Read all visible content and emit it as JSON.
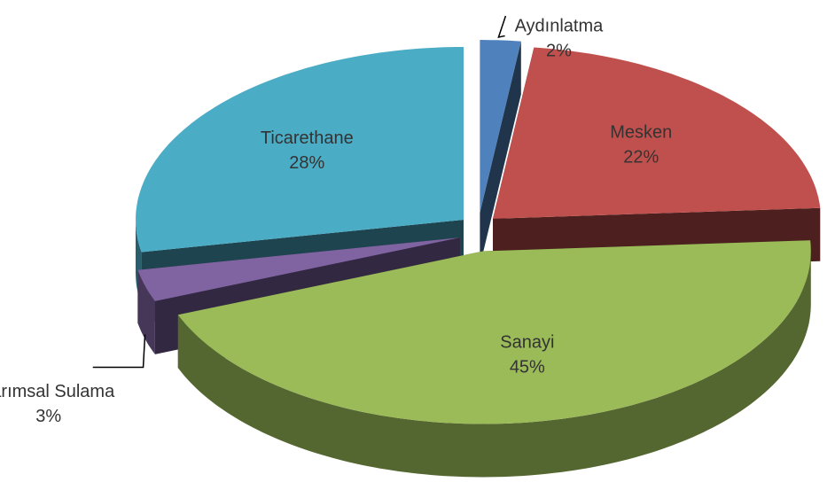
{
  "chart_data": {
    "type": "pie",
    "categories": [
      "Aydınlatma",
      "Mesken",
      "Sanayi",
      "Tarımsal Sulama",
      "Ticarethane"
    ],
    "values": [
      2,
      22,
      45,
      3,
      28
    ],
    "value_labels": [
      "2%",
      "22%",
      "45%",
      "3%",
      "28%"
    ],
    "colors": [
      "#4f81bd",
      "#c0504d",
      "#9bbb59",
      "#8064a2",
      "#4bacc6"
    ]
  }
}
